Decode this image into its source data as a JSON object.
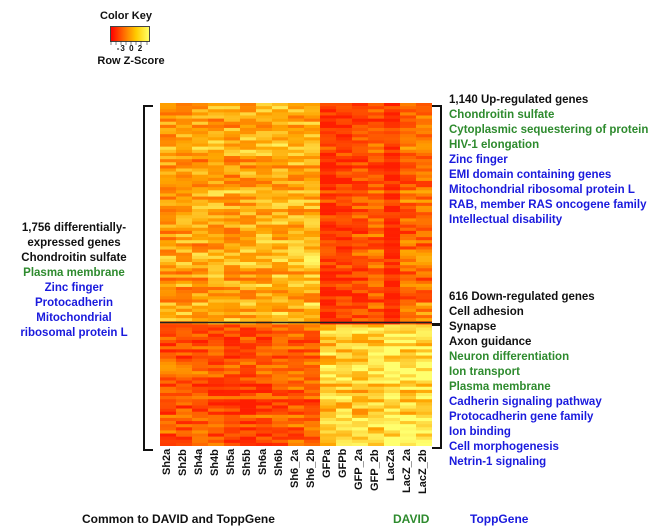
{
  "color_key": {
    "title": "Color Key",
    "tick_labels": [
      "-3",
      "0",
      "2"
    ],
    "subtitle": "Row Z-Score"
  },
  "left_labels": [
    {
      "text": "1,756 differentially-",
      "color": "black"
    },
    {
      "text": "expressed genes",
      "color": "black"
    },
    {
      "text": "Chondroitin sulfate",
      "color": "black"
    },
    {
      "text": "Plasma membrane",
      "color": "green"
    },
    {
      "text": "Zinc finger",
      "color": "blue"
    },
    {
      "text": "Protocadherin",
      "color": "blue"
    },
    {
      "text": "Mitochondrial",
      "color": "blue"
    },
    {
      "text": "ribosomal protein L",
      "color": "blue"
    }
  ],
  "right_up_labels": [
    {
      "text": "1,140 Up-regulated genes",
      "color": "black"
    },
    {
      "text": "Chondroitin sulfate",
      "color": "green"
    },
    {
      "text": "Cytoplasmic sequestering of protein",
      "color": "green"
    },
    {
      "text": "HIV-1 elongation",
      "color": "green"
    },
    {
      "text": "Zinc finger",
      "color": "blue"
    },
    {
      "text": "EMI domain containing genes",
      "color": "blue"
    },
    {
      "text": "Mitochondrial ribosomal protein L",
      "color": "blue"
    },
    {
      "text": "RAB, member RAS oncogene family",
      "color": "blue"
    },
    {
      "text": "Intellectual disability",
      "color": "blue"
    }
  ],
  "right_down_labels": [
    {
      "text": "616 Down-regulated genes",
      "color": "black"
    },
    {
      "text": "Cell adhesion",
      "color": "black"
    },
    {
      "text": "Synapse",
      "color": "black"
    },
    {
      "text": "Axon guidance",
      "color": "black"
    },
    {
      "text": "Neuron differentiation",
      "color": "green"
    },
    {
      "text": "Ion transport",
      "color": "green"
    },
    {
      "text": "Plasma membrane",
      "color": "green"
    },
    {
      "text": "Cadherin signaling pathway",
      "color": "blue"
    },
    {
      "text": "Protocadherin gene family",
      "color": "blue"
    },
    {
      "text": "Ion binding",
      "color": "blue"
    },
    {
      "text": "Cell morphogenesis",
      "color": "blue"
    },
    {
      "text": "Netrin-1 signaling",
      "color": "blue"
    }
  ],
  "columns": [
    "Sh2a",
    "Sh2b",
    "Sh4a",
    "Sh4b",
    "Sh5a",
    "Sh5b",
    "Sh6a",
    "Sh6b",
    "Sh6_2a",
    "Sh6_2b",
    "GFPa",
    "GFPb",
    "GFP_2a",
    "GFP_2b",
    "LacZa",
    "LacZ_2a",
    "LacZ_2b"
  ],
  "footer": {
    "common": "Common to DAVID and ToppGene",
    "david": "DAVID",
    "toppgene": "ToppGene"
  },
  "colors": {
    "black": "#111111",
    "green": "#2e8b2e",
    "blue": "#1a1add"
  }
}
